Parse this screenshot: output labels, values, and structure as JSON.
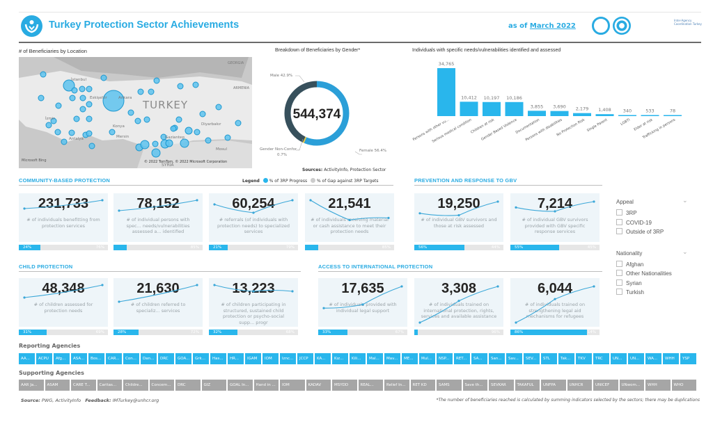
{
  "header": {
    "title": "Turkey Protection Sector Achievements",
    "as_of_prefix": "as of",
    "as_of_date": "March 2022",
    "partner_logo_text": "Inter-Agency Coordination Turkey"
  },
  "colors": {
    "accent": "#29abe2",
    "progress": "#29b6ec",
    "gap": "#e6e6e6",
    "male": "#37505c",
    "female": "#2b9fd8",
    "non_conforming": "#e8c93a",
    "supporting_chip": "#a6a6a6"
  },
  "map": {
    "title": "# of Beneficiaries by Location",
    "labels": [
      "TURKEY",
      "Konya",
      "Mersin",
      "Antalya",
      "Diyarbakır",
      "Gaziantep",
      "İzmir",
      "Ankara",
      "Eskişehir",
      "İstanbul",
      "Mosul",
      "SYRIA",
      "GEORGIA",
      "ARMENIA"
    ],
    "attribution": "© 2022 TomTom, © 2022 Microsoft Corporation",
    "brand": "Microsoft Bing"
  },
  "gender": {
    "title": "Breakdown of Beneficiaries by Gender*",
    "total": "544,374",
    "slices": [
      {
        "label": "Female",
        "pct": 56.4,
        "text": "Female 56.4%"
      },
      {
        "label": "Gender Non-Conforming",
        "pct": 0.7,
        "text": "Gender Non-Confor...",
        "text2": "0.7%"
      },
      {
        "label": "Male",
        "pct": 42.9,
        "text": "Male 42.9%"
      }
    ],
    "sources_label": "Sources:",
    "sources": "ActivityInfo, Protection Sector"
  },
  "legend": {
    "title": "Legend",
    "progress": "% of 3RP Progress",
    "gap": "% of Gap against 3RP Targets"
  },
  "chart_data": {
    "type": "bar",
    "title": "Individuals with specific needs/vulnerabilities identified and assessed",
    "categories": [
      "Persons with other vu...",
      "Serious medical condition",
      "Children at risk",
      "Gender Based Violence",
      "Documentation",
      "Persons with disabilities",
      "No Protection Risk",
      "Single Parent",
      "LGBTI",
      "Elder at risk",
      "Trafficking in persons"
    ],
    "values": [
      34765,
      10412,
      10197,
      10186,
      3855,
      3690,
      2179,
      1408,
      340,
      533,
      78
    ],
    "data_labels": [
      "34,765",
      "10,412",
      "10,197",
      "10,186",
      "3,855",
      "3,690",
      "2,179",
      "1,408",
      "340",
      "533",
      "78"
    ],
    "ylim": [
      0,
      34765
    ],
    "grid": false
  },
  "sections": [
    {
      "title": "COMMUNITY-BASED PROTECTION",
      "cards": [
        {
          "value": "231,733",
          "desc": "# of individuals benefitting from protection services",
          "progress": 24,
          "progress_label": "24%",
          "gap_label": "76%"
        },
        {
          "value": "78,152",
          "desc": "# of individual persons with spec... needs/vulnerabilities assessed a... identified",
          "progress": 15,
          "progress_label": "",
          "gap_label": "85%"
        },
        {
          "value": "60,254",
          "desc": "# referrals (of individuals with protection needs) to specialized services",
          "progress": 21,
          "progress_label": "21%",
          "gap_label": "79%"
        },
        {
          "value": "21,541",
          "desc": "# of individuals receiving material or cash assistance to meet their protection needs",
          "progress": 15,
          "progress_label": "",
          "gap_label": "85%"
        }
      ]
    },
    {
      "title": "PREVENTION AND RESPONSE TO GBV",
      "cards": [
        {
          "value": "19,250",
          "desc": "# of individual GBV survivors and those at risk assessed",
          "progress": 56,
          "progress_label": "56%",
          "gap_label": "44%"
        },
        {
          "value": "7,214",
          "desc": "# of individual GBV survivors provided with GBV specific response services",
          "progress": 55,
          "progress_label": "55%",
          "gap_label": "45%"
        }
      ]
    },
    {
      "title": "CHILD PROTECTION",
      "cards": [
        {
          "value": "48,348",
          "desc": "# of children assessed for protection needs",
          "progress": 31,
          "progress_label": "31%",
          "gap_label": "69%"
        },
        {
          "value": "21,630",
          "desc": "# of children referred to specializ... services",
          "progress": 28,
          "progress_label": "28%",
          "gap_label": "72%"
        },
        {
          "value": "13,223",
          "desc": "# of children participating in structured, sustained child protection or psycho-social supp... progr",
          "progress": 32,
          "progress_label": "32%",
          "gap_label": "68%"
        }
      ]
    },
    {
      "title": "ACCESS TO INTERNATIONAL PROTECTION",
      "cards": [
        {
          "value": "17,635",
          "desc": "# of individuals provided with individual legal support",
          "progress": 33,
          "progress_label": "33%",
          "gap_label": "67%"
        },
        {
          "value": "3,308",
          "desc": "# of individuals trained on international protection, rights, services and available assistance",
          "progress": 4,
          "progress_label": "",
          "gap_label": "96%"
        },
        {
          "value": "6,044",
          "desc": "# of individuals trained on strengthening legal aid mechanisms for refugees",
          "progress": 86,
          "progress_label": "86%",
          "gap_label": "14%"
        }
      ]
    }
  ],
  "filters": [
    {
      "title": "Appeal",
      "options": [
        "3RP",
        "COVID-19",
        "Outside of 3RP"
      ]
    },
    {
      "title": "Nationality",
      "options": [
        "Afghan",
        "Other Nationalities",
        "Syrian",
        "Turkish"
      ]
    }
  ],
  "reporting": {
    "title": "Reporting Agencies",
    "items": [
      "AA...",
      "ACPU",
      "Afg...",
      "ASA...",
      "Bos...",
      "CAR...",
      "Con...",
      "Dan...",
      "DRC",
      "GOA...",
      "Grk...",
      "Has...",
      "HR...",
      "IGAM",
      "IOM",
      "Iznc...",
      "JCCP",
      "KA...",
      "Kız...",
      "Kili...",
      "Mal...",
      "Mav...",
      "ME...",
      "Mul...",
      "NSP...",
      "RET...",
      "SA...",
      "San...",
      "Sav...",
      "SEV...",
      "STL",
      "Tak...",
      "TKV",
      "TRC",
      "UN...",
      "UN...",
      "WA...",
      "WHH",
      "YSP"
    ]
  },
  "supporting": {
    "title": "Supporting Agencies",
    "items": [
      "AAR Ja...",
      "ASAM",
      "CARE T...",
      "Caritas...",
      "Childre...",
      "Concern...",
      "DRC",
      "GIZ",
      "GOAL In...",
      "Hand in ...",
      "IOM",
      "KADAV",
      "MSYDD",
      "REAL...",
      "Relief In...",
      "RET KD",
      "SAMS",
      "Save th...",
      "SEVKAR",
      "TAKAFUL",
      "UNFPA",
      "UNHCR",
      "UNICEF",
      "UNwom...",
      "WHH",
      "WHO"
    ]
  },
  "footer": {
    "source_label": "Source:",
    "source": "PWG, ActivityInfo",
    "feedback_label": "Feedback:",
    "feedback": "IMTurkey@unhcr.org",
    "note": "*The number of beneficiaries reached is calculated by summing indicators selected by the sectors; there may be duplications"
  }
}
